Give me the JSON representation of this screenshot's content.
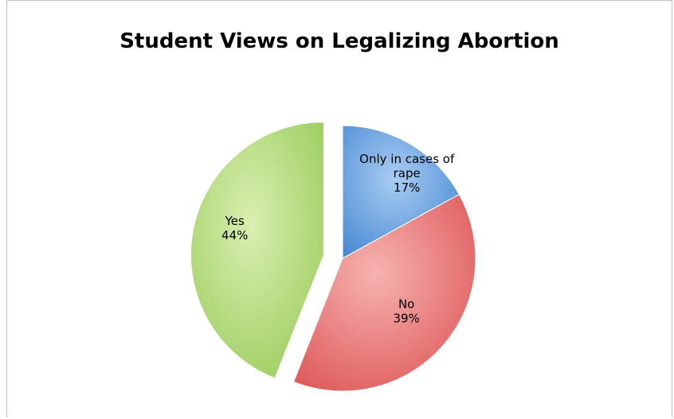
{
  "chart_data": {
    "type": "pie",
    "title": "Student Views on Legalizing Abortion",
    "slices": [
      {
        "label": "Only in cases of rape",
        "label_lines": [
          "Only in cases of",
          "rape"
        ],
        "percent_label": "17%",
        "value": 17,
        "color": "#5b9bd5",
        "exploded": false
      },
      {
        "label": "No",
        "label_lines": [
          "No"
        ],
        "percent_label": "39%",
        "value": 39,
        "color": "#e46b6b",
        "exploded": false
      },
      {
        "label": "Yes",
        "label_lines": [
          "Yes"
        ],
        "percent_label": "44%",
        "value": 44,
        "color": "#a6d26a",
        "exploded": true
      }
    ],
    "legend": "none"
  }
}
